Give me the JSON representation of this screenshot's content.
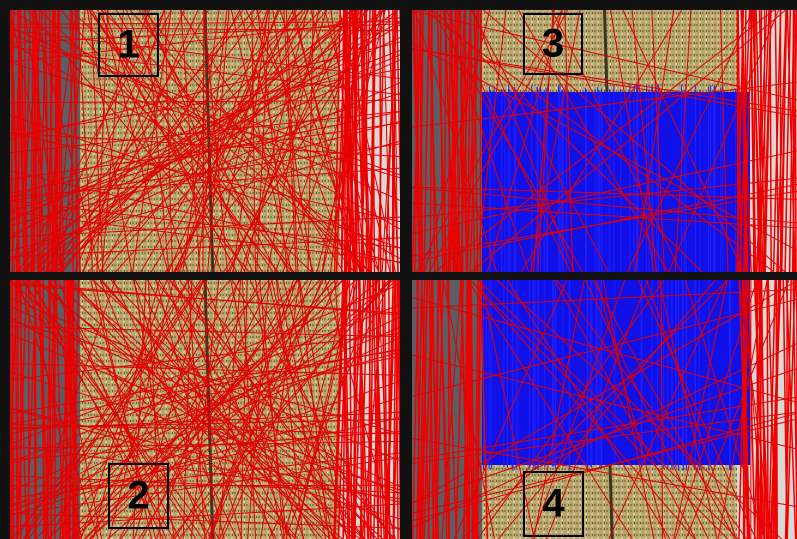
{
  "panels": [
    {
      "label": "1"
    },
    {
      "label": "3"
    },
    {
      "label": "2"
    },
    {
      "label": "4"
    }
  ]
}
